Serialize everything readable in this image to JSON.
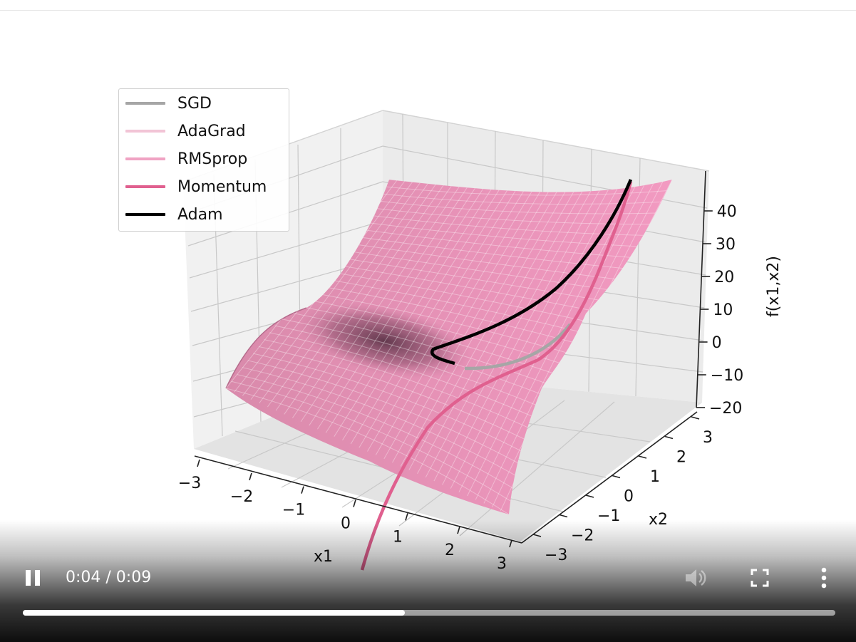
{
  "chart_data": {
    "type": "surface",
    "zlabel": "f(x1,x2)",
    "xlabel": "x1",
    "ylabel": "x2",
    "x_ticks": [
      "−3",
      "−2",
      "−1",
      "0",
      "1",
      "2",
      "3"
    ],
    "y_ticks": [
      "−3",
      "−2",
      "−1",
      "0",
      "1",
      "2",
      "3"
    ],
    "z_ticks": [
      "−20",
      "−10",
      "0",
      "10",
      "20",
      "30",
      "40"
    ],
    "zlim": [
      -20,
      45
    ],
    "surface_color": "#e98bb4",
    "series": [
      {
        "name": "SGD",
        "color": "#a6a6a6"
      },
      {
        "name": "AdaGrad",
        "color": "#f2c4d6"
      },
      {
        "name": "RMSprop",
        "color": "#f0a3c3"
      },
      {
        "name": "Momentum",
        "color": "#e0608f"
      },
      {
        "name": "Adam",
        "color": "#000000"
      }
    ]
  },
  "player": {
    "state": "playing",
    "current_time": "0:04",
    "duration": "0:09",
    "time_text": "0:04 / 0:09",
    "progress_fraction": 0.47,
    "icons": {
      "pause": "pause-icon",
      "volume": "volume-icon",
      "fullscreen": "fullscreen-icon",
      "more": "more-vert-icon"
    }
  }
}
